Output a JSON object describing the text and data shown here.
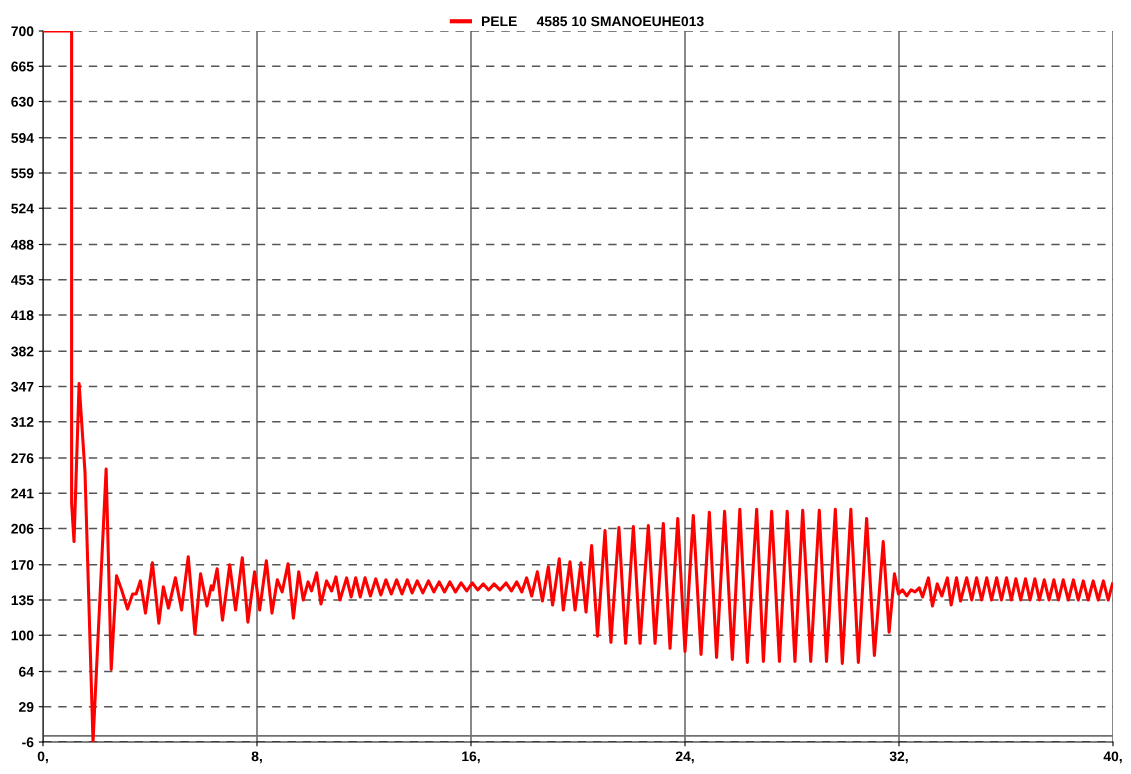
{
  "chart_data": {
    "type": "line",
    "legend": "top",
    "grid": true,
    "marker": "none",
    "line_style": "solid",
    "xlim": [
      0,
      40
    ],
    "xticks": [
      {
        "value": 0,
        "label": "0,"
      },
      {
        "value": 8,
        "label": "8,"
      },
      {
        "value": 16,
        "label": "16,"
      },
      {
        "value": 24,
        "label": "24,"
      },
      {
        "value": 32,
        "label": "32,"
      },
      {
        "value": 40,
        "label": "40,"
      }
    ],
    "ylim": [
      -6,
      700
    ],
    "yticks": [
      -6,
      29,
      64,
      100,
      135,
      170,
      206,
      241,
      276,
      312,
      347,
      382,
      418,
      453,
      488,
      524,
      559,
      594,
      630,
      665,
      700
    ],
    "ref_lines": [
      {
        "axis": "y",
        "value": 0,
        "color": "#707070"
      }
    ],
    "series": [
      {
        "name": "PELE     4585 10 SMANOEUHE013",
        "color": "#ff0000",
        "x": [
          0,
          1.07,
          1.07,
          1.16,
          1.35,
          1.57,
          1.87,
          2.36,
          2.55,
          2.75,
          2.94,
          3.16,
          3.35,
          3.48,
          3.64,
          3.83,
          4.09,
          4.33,
          4.5,
          4.69,
          4.95,
          5.18,
          5.43,
          5.68,
          5.89,
          6.13,
          6.29,
          6.35,
          6.51,
          6.71,
          6.98,
          7.2,
          7.45,
          7.66,
          7.91,
          8.1,
          8.35,
          8.56,
          8.76,
          8.94,
          9.16,
          9.36,
          9.56,
          9.73,
          9.91,
          10.04,
          10.23,
          10.39,
          10.6,
          10.79,
          10.95,
          11.1,
          11.35,
          11.52,
          11.69,
          11.86,
          12.04,
          12.24,
          12.44,
          12.63,
          12.82,
          13.02,
          13.22,
          13.42,
          13.62,
          13.8,
          13.99,
          14.2,
          14.41,
          14.61,
          14.81,
          15.01,
          15.21,
          15.42,
          15.63,
          15.84,
          16.05,
          16.25,
          16.46,
          16.66,
          16.86,
          17.08,
          17.31,
          17.51,
          17.71,
          17.9,
          18.08,
          18.27,
          18.48,
          18.67,
          18.89,
          19.05,
          19.3,
          19.45,
          19.7,
          19.89,
          20.11,
          20.3,
          20.51,
          20.73,
          21.01,
          21.23,
          21.53,
          21.78,
          22.07,
          22.32,
          22.63,
          22.88,
          23.19,
          23.44,
          23.73,
          24.0,
          24.31,
          24.6,
          24.91,
          25.18,
          25.48,
          25.77,
          26.05,
          26.33,
          26.68,
          26.93,
          27.24,
          27.53,
          27.82,
          28.11,
          28.4,
          28.7,
          29.02,
          29.29,
          29.62,
          29.88,
          30.2,
          30.48,
          30.79,
          31.08,
          31.41,
          31.63,
          31.83,
          31.98,
          32.13,
          32.29,
          32.45,
          32.6,
          32.76,
          32.88,
          33.1,
          33.25,
          33.43,
          33.6,
          33.81,
          33.95,
          34.15,
          34.3,
          34.53,
          34.72,
          34.9,
          35.09,
          35.28,
          35.46,
          35.65,
          35.83,
          36.02,
          36.2,
          36.37,
          36.55,
          36.73,
          36.9,
          37.08,
          37.25,
          37.43,
          37.61,
          37.79,
          37.96,
          38.14,
          38.33,
          38.52,
          38.7,
          38.89,
          39.07,
          39.26,
          39.45,
          39.64,
          39.82,
          39.98
        ],
        "values": [
          700,
          700,
          231,
          193,
          350,
          262,
          -6,
          265,
          66,
          159,
          145,
          126,
          141,
          141,
          154,
          122,
          172,
          112,
          148,
          127,
          157,
          125,
          178,
          101,
          161,
          129,
          149,
          145,
          166,
          115,
          170,
          125,
          177,
          113,
          163,
          125,
          174,
          122,
          155,
          143,
          171,
          117,
          163,
          135,
          153,
          144,
          162,
          131,
          154,
          144,
          158,
          135,
          157,
          138,
          157,
          138,
          157,
          139,
          156,
          140,
          155,
          141,
          155,
          141,
          155,
          142,
          154,
          142,
          154,
          143,
          153,
          143,
          153,
          143,
          152,
          144,
          152,
          145,
          151,
          145,
          151,
          145,
          152,
          144,
          153,
          143,
          157,
          139,
          163,
          134,
          168,
          130,
          176,
          125,
          173,
          125,
          172,
          123,
          189,
          99,
          204,
          93,
          207,
          92,
          208,
          92,
          209,
          92,
          211,
          87,
          216,
          84,
          219,
          81,
          222,
          78,
          223,
          76,
          225,
          73,
          225,
          74,
          223,
          74,
          223,
          74,
          224,
          74,
          224,
          74,
          225,
          72,
          225,
          73,
          216,
          80,
          193,
          103,
          161,
          141,
          145,
          139,
          145,
          143,
          147,
          138,
          157,
          129,
          151,
          139,
          157,
          130,
          157,
          134,
          157,
          135,
          157,
          135,
          157,
          135,
          157,
          135,
          157,
          135,
          156,
          135,
          156,
          135,
          156,
          135,
          155,
          135,
          155,
          135,
          155,
          135,
          155,
          135,
          154,
          135,
          154,
          135,
          154,
          135,
          151
        ]
      }
    ]
  }
}
